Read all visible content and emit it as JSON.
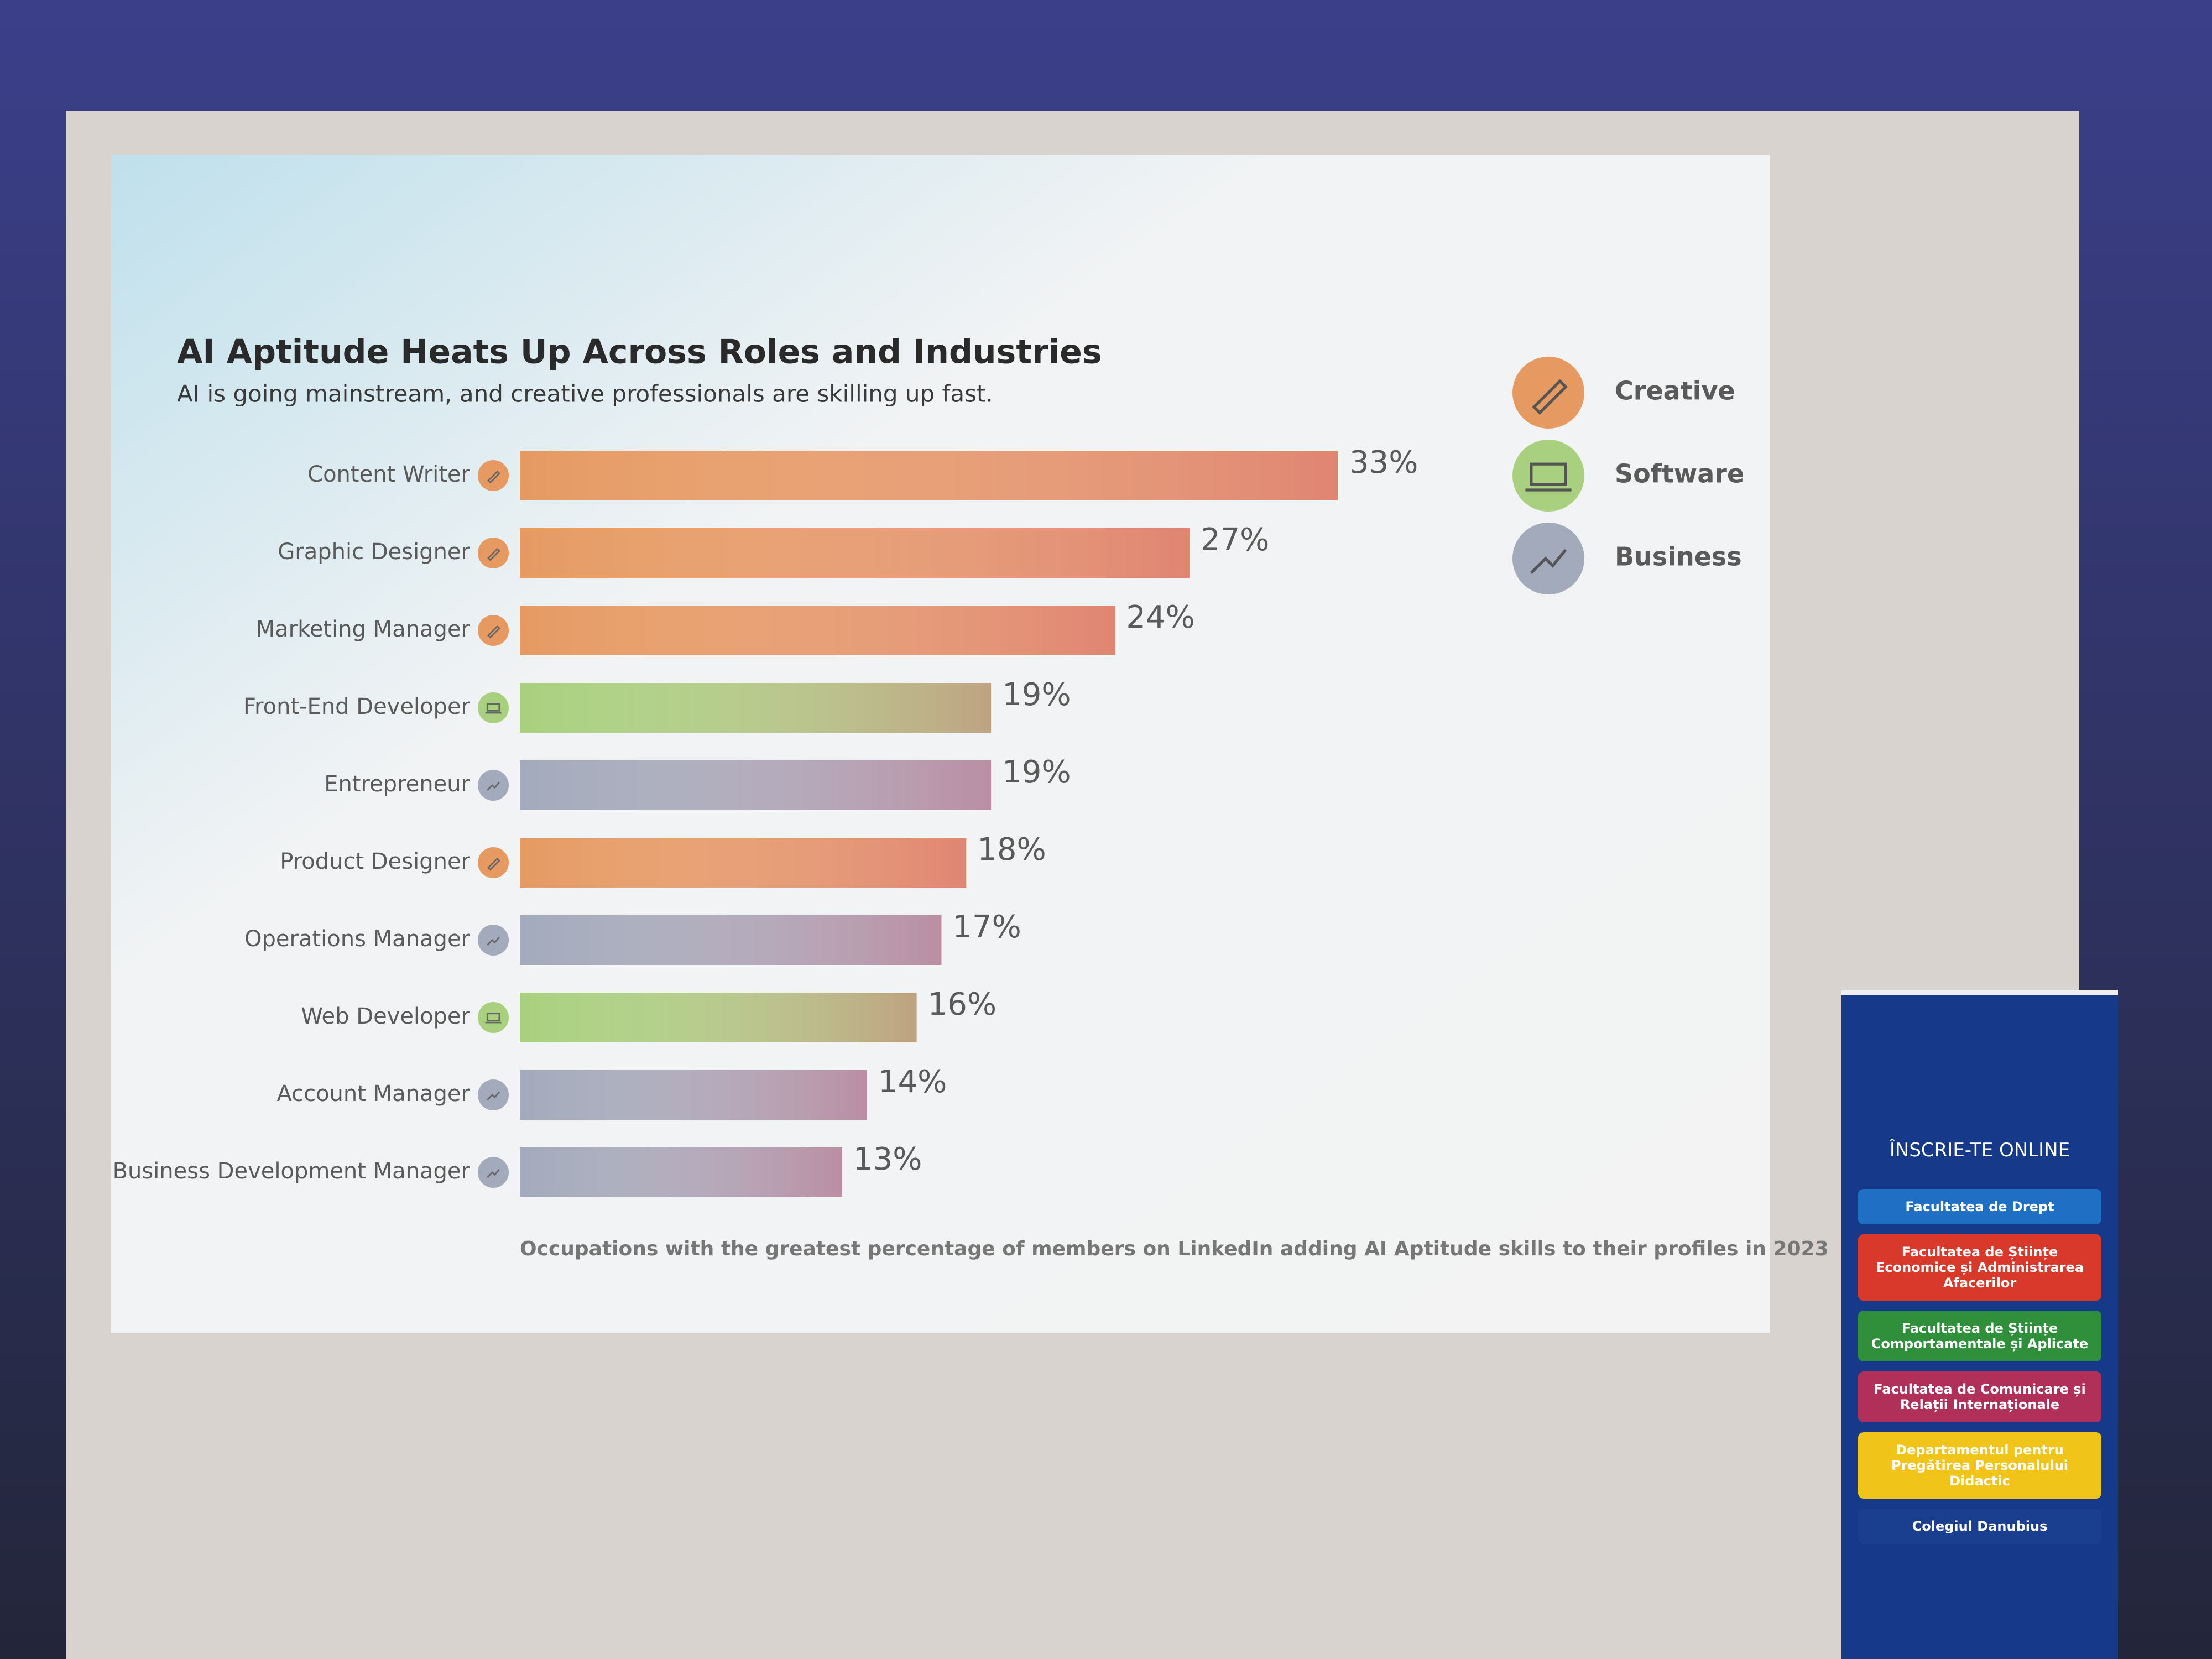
{
  "chart_data": {
    "type": "hbar",
    "title": "AI Aptitude Heats Up Across Roles and Industries",
    "subtitle": "AI is going mainstream, and creative professionals are skilling up fast.",
    "categories": [
      "Content Writer",
      "Graphic Designer",
      "Marketing Manager",
      "Front-End Developer",
      "Entrepreneur",
      "Product Designer",
      "Operations Manager",
      "Web Developer",
      "Account Manager",
      "Business Development Manager"
    ],
    "series": [
      {
        "name": "Creative",
        "color": "#e69a62",
        "values": [
          33,
          27,
          24,
          null,
          null,
          18,
          null,
          null,
          null,
          null
        ]
      },
      {
        "name": "Software",
        "color": "#a9d07e",
        "values": [
          null,
          null,
          null,
          19,
          null,
          null,
          null,
          16,
          null,
          null
        ]
      },
      {
        "name": "Business",
        "color": "#a3aabb",
        "values": [
          null,
          null,
          null,
          null,
          19,
          null,
          17,
          null,
          14,
          13
        ]
      }
    ],
    "value_labels": [
      "33%",
      "27%",
      "24%",
      "19%",
      "19%",
      "18%",
      "17%",
      "16%",
      "14%",
      "13%"
    ],
    "legend": "right",
    "footnote": "Occupations with the greatest percentage of members on LinkedIn adding AI Aptitude skills to their profiles in 2023"
  },
  "banner": {
    "cta": "ÎNSCRIE-TE ONLINE",
    "items": [
      {
        "text": "Facultatea de Drept",
        "color": "#1f6fc4"
      },
      {
        "text": "Facultatea de Științe Economice și Administrarea Afacerilor",
        "color": "#d8392b"
      },
      {
        "text": "Facultatea de Științe Comportamentale și Aplicate",
        "color": "#2f8f3a"
      },
      {
        "text": "Facultatea de Comunicare și Relații Internaționale",
        "color": "#b0305a"
      },
      {
        "text": "Departamentul pentru Pregătirea Personalului Didactic",
        "color": "#f0c419"
      },
      {
        "text": "Colegiul Danubius",
        "color": "#1b3f8f"
      }
    ]
  }
}
